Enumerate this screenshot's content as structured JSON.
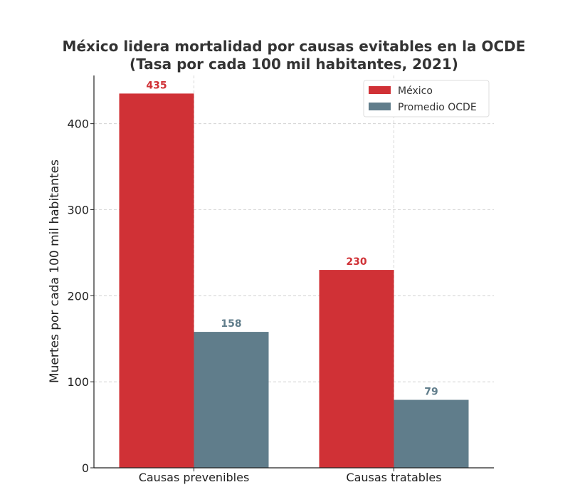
{
  "chart_data": {
    "type": "bar",
    "title": "México lidera mortalidad por causas evitables en la OCDE",
    "subtitle": "(Tasa por cada 100 mil habitantes, 2021)",
    "xlabel": "",
    "ylabel": "Muertes por cada 100 mil habitantes",
    "categories": [
      "Causas prevenibles",
      "Causas tratables"
    ],
    "series": [
      {
        "name": "México",
        "values": [
          435,
          230
        ],
        "color": "#d03136"
      },
      {
        "name": "Promedio OCDE",
        "values": [
          158,
          79
        ],
        "color": "#607d8b"
      }
    ],
    "ylim": [
      0,
      456
    ],
    "yticks": [
      "0",
      "100",
      "200",
      "300",
      "400"
    ],
    "grid": true,
    "legend_position": "top-right",
    "data_labels": true
  }
}
